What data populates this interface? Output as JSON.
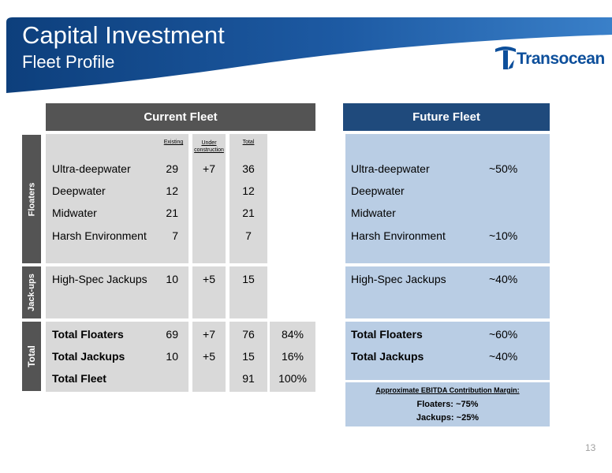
{
  "header": {
    "title": "Capital Investment",
    "subtitle": "Fleet Profile",
    "logo_text": "Transocean"
  },
  "current_fleet": {
    "heading": "Current Fleet",
    "columns": [
      "Existing",
      "Under construction",
      "Total"
    ],
    "floaters_tab": "Floaters",
    "jackups_tab": "Jack-ups",
    "total_tab": "Total",
    "floater_rows": [
      {
        "label": "Ultra-deepwater",
        "existing": "29",
        "under": "+7",
        "total": "36"
      },
      {
        "label": "Deepwater",
        "existing": "12",
        "under": "",
        "total": "12"
      },
      {
        "label": "Midwater",
        "existing": "21",
        "under": "",
        "total": "21"
      },
      {
        "label": "Harsh Environment",
        "existing": "7",
        "under": "",
        "total": "7"
      }
    ],
    "jackup_rows": [
      {
        "label": "High-Spec Jackups",
        "existing": "10",
        "under": "+5",
        "total": "15"
      }
    ],
    "total_rows": [
      {
        "label": "Total Floaters",
        "existing": "69",
        "under": "+7",
        "total": "76",
        "pct": "84%"
      },
      {
        "label": "Total Jackups",
        "existing": "10",
        "under": "+5",
        "total": "15",
        "pct": "16%"
      },
      {
        "label": "Total Fleet",
        "existing": "",
        "under": "",
        "total": "91",
        "pct": "100%"
      }
    ]
  },
  "future_fleet": {
    "heading": "Future Fleet",
    "floater_rows": [
      {
        "label": "Ultra-deepwater",
        "share": "~50%"
      },
      {
        "label": "Deepwater",
        "share": ""
      },
      {
        "label": "Midwater",
        "share": ""
      },
      {
        "label": "Harsh Environment",
        "share": "~10%"
      }
    ],
    "jackup_rows": [
      {
        "label": "High-Spec Jackups",
        "share": "~40%"
      }
    ],
    "total_rows": [
      {
        "label": "Total Floaters",
        "share": "~60%"
      },
      {
        "label": "Total Jackups",
        "share": "~40%"
      }
    ],
    "ebitda": {
      "title": "Approximate EBITDA Contribution Margin:",
      "floaters": "Floaters: ~75%",
      "jackups": "Jackups: ~25%"
    }
  },
  "page_number": "13",
  "colors": {
    "banner_dark": "#0d3f7c",
    "banner_light": "#2f74bf",
    "gray_header": "#545454",
    "navy_header": "#1f4a7c",
    "gray_panel": "#d9d9d9",
    "blue_panel": "#b9cde4",
    "logo": "#0d4f9b"
  }
}
